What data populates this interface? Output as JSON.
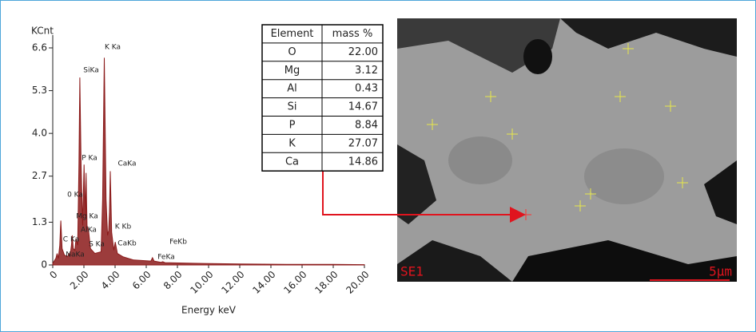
{
  "chart_data": {
    "type": "line",
    "y_label": "KCnt",
    "x_label": "Energy keV",
    "x": [
      0,
      0.2,
      0.28,
      0.36,
      0.45,
      0.52,
      0.6,
      0.75,
      0.95,
      1.04,
      1.12,
      1.2,
      1.25,
      1.32,
      1.42,
      1.49,
      1.6,
      1.68,
      1.74,
      1.82,
      1.92,
      2.01,
      2.08,
      2.14,
      2.2,
      2.31,
      2.42,
      2.7,
      3.1,
      3.2,
      3.31,
      3.42,
      3.52,
      3.59,
      3.64,
      3.69,
      3.78,
      3.92,
      4.01,
      4.15,
      4.5,
      5.2,
      6.3,
      6.4,
      6.5,
      6.95,
      7.06,
      7.2,
      9,
      12,
      15,
      18,
      20
    ],
    "values": [
      0.05,
      0.2,
      0.35,
      0.2,
      0.6,
      1.35,
      0.5,
      0.3,
      0.25,
      0.35,
      0.3,
      0.6,
      0.9,
      0.5,
      0.45,
      0.8,
      0.6,
      3.1,
      5.7,
      3.0,
      1.2,
      3.05,
      1.5,
      2.8,
      1.2,
      1.0,
      0.5,
      0.35,
      0.4,
      2.0,
      6.3,
      2.0,
      0.9,
      1.05,
      1.6,
      2.85,
      1.0,
      0.45,
      0.7,
      0.35,
      0.25,
      0.15,
      0.12,
      0.22,
      0.12,
      0.08,
      0.1,
      0.07,
      0.05,
      0.03,
      0.02,
      0.02,
      0.01
    ],
    "color": "#8b1a1a",
    "xlim": [
      0,
      20
    ],
    "xticks": [
      0,
      {
        "value": 2,
        "label": "2.00"
      },
      {
        "value": 4,
        "label": "4.00"
      },
      {
        "value": 6,
        "label": "6.00"
      },
      {
        "value": 8,
        "label": "8.00"
      },
      {
        "value": 10,
        "label": "10.00"
      },
      {
        "value": 12,
        "label": "12.00"
      },
      {
        "value": 14,
        "label": "14.00"
      },
      {
        "value": 16,
        "label": "16.00"
      },
      {
        "value": 18,
        "label": "18.00"
      },
      {
        "value": 20,
        "label": "20.00"
      }
    ],
    "ylim": [
      0,
      6.6
    ],
    "yticks": [
      0,
      1.3,
      2.7,
      {
        "value": 4,
        "label": "4.0"
      },
      5.3,
      6.6
    ],
    "annotations": [
      "SiKa",
      "K Ka",
      "P Ka",
      "CaKa",
      "0 Ka",
      "Mg Ka",
      "AlKa",
      "K Kb",
      "C Ka",
      "S Ka",
      "CaKb",
      "NaKa",
      "FeKb",
      "FeKa"
    ]
  },
  "table": {
    "header": [
      "Element",
      "mass %"
    ],
    "rows": [
      [
        "O",
        "22.00"
      ],
      [
        "Mg",
        "3.12"
      ],
      [
        "Al",
        "0.43"
      ],
      [
        "Si",
        "14.67"
      ],
      [
        "P",
        "8.84"
      ],
      [
        "K",
        "27.07"
      ],
      [
        "Ca",
        "14.86"
      ]
    ]
  },
  "image": {
    "detector": "SE1",
    "scale": "5µm"
  }
}
